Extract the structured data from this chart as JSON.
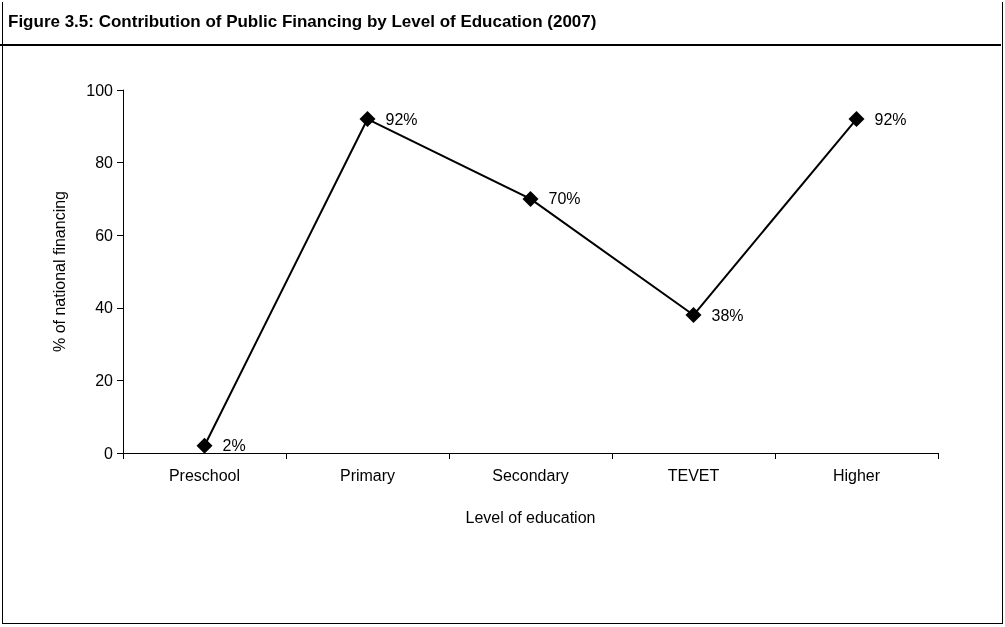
{
  "chart_data": {
    "type": "line",
    "title": "Figure 3.5: Contribution of Public Financing by Level of Education (2007)",
    "xlabel": "Level of education",
    "ylabel": "% of national financing",
    "categories": [
      "Preschool",
      "Primary",
      "Secondary",
      "TEVET",
      "Higher"
    ],
    "series": [
      {
        "color": "#000000",
        "values": [
          2,
          92,
          70,
          38,
          92
        ],
        "value_labels": [
          "2%",
          "92%",
          "70%",
          "38%",
          "92%"
        ]
      }
    ],
    "ylim": [
      0,
      100
    ],
    "yticks": [
      0,
      20,
      40,
      60,
      80,
      100
    ],
    "grid": false,
    "marker": "diamond",
    "line_style": "solid"
  }
}
